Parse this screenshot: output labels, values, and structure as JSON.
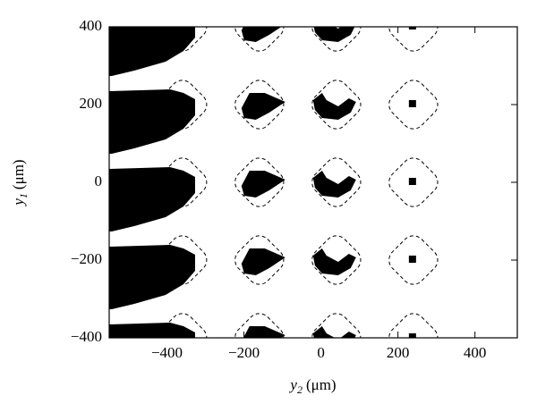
{
  "chart_data": {
    "type": "contour-map",
    "xlabel": {
      "symbol": "y",
      "subscript": "2",
      "unit": "(μm)"
    },
    "ylabel": {
      "symbol": "y",
      "subscript": "1",
      "unit": "(μm)"
    },
    "xlim": [
      -550,
      510
    ],
    "ylim": [
      -400,
      400
    ],
    "xticks": [
      {
        "value": -400,
        "label": "−400"
      },
      {
        "value": -200,
        "label": "−200"
      },
      0,
      200,
      400
    ],
    "yticks": [
      {
        "value": -400,
        "label": "−400"
      },
      {
        "value": -200,
        "label": "−200"
      },
      0,
      200,
      400
    ],
    "contours": {
      "x": [
        -360,
        -160,
        40,
        240
      ],
      "y": [
        400,
        200,
        0,
        -200,
        -400
      ]
    },
    "color": "#000000"
  }
}
